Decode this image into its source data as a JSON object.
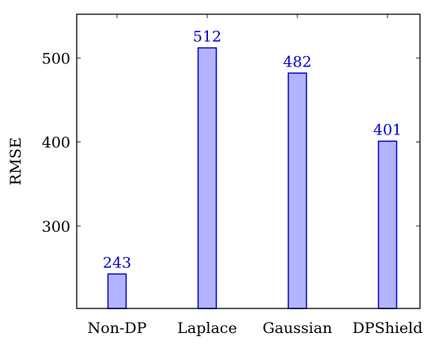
{
  "chart_data": {
    "type": "bar",
    "title": "",
    "xlabel": "",
    "ylabel": "RMSE",
    "categories": [
      "Non-DP",
      "Laplace",
      "Gaussian",
      "DPShield"
    ],
    "values": [
      243,
      512,
      482,
      401
    ],
    "data_labels": [
      "243",
      "512",
      "482",
      "401"
    ],
    "ylim": [
      202,
      552
    ],
    "yticks": [
      300,
      400,
      500
    ],
    "ytick_labels": [
      "300",
      "400",
      "500"
    ],
    "grid": false,
    "legend": "none",
    "colors": {
      "bar_fill": "#b3b3ff",
      "bar_stroke": "#0000cc",
      "label": "#0000cc"
    }
  }
}
